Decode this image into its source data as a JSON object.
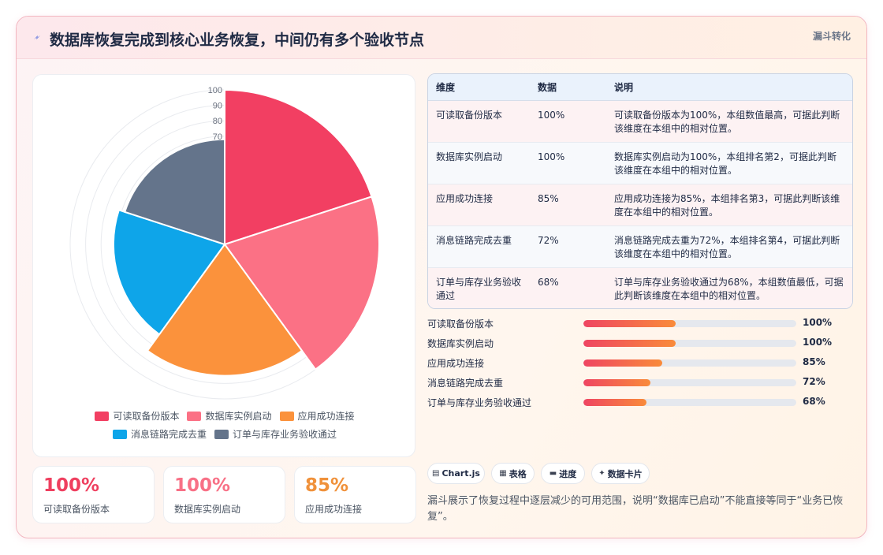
{
  "header": {
    "title": "数据库恢复完成到核心业务恢复，中间仍有多个验收节点",
    "badge": "漏斗转化"
  },
  "chart_data": {
    "type": "polar-area",
    "categories": [
      "可读取备份版本",
      "数据库实例启动",
      "应用成功连接",
      "消息链路完成去重",
      "订单与库存业务验收通过"
    ],
    "values": [
      100,
      100,
      85,
      72,
      68
    ],
    "colors": [
      "#f23f62",
      "#fb7185",
      "#fb923c",
      "#0ea5e9",
      "#64748b"
    ],
    "r_ticks": [
      "100",
      "90",
      "80",
      "70"
    ],
    "rlim": [
      0,
      100
    ],
    "legend_position": "bottom"
  },
  "table": {
    "headers": [
      "维度",
      "数据",
      "说明"
    ],
    "rows": [
      {
        "dimension": "可读取备份版本",
        "value": "100%",
        "desc": "可读取备份版本为100%，本组数值最高，可据此判断该维度在本组中的相对位置。"
      },
      {
        "dimension": "数据库实例启动",
        "value": "100%",
        "desc": "数据库实例启动为100%，本组排名第2，可据此判断该维度在本组中的相对位置。"
      },
      {
        "dimension": "应用成功连接",
        "value": "85%",
        "desc": "应用成功连接为85%，本组排名第3，可据此判断该维度在本组中的相对位置。"
      },
      {
        "dimension": "消息链路完成去重",
        "value": "72%",
        "desc": "消息链路完成去重为72%，本组排名第4，可据此判断该维度在本组中的相对位置。"
      },
      {
        "dimension": "订单与库存业务验收通过",
        "value": "68%",
        "desc": "订单与库存业务验收通过为68%，本组数值最低，可据此判断该维度在本组中的相对位置。"
      }
    ]
  },
  "progress": [
    {
      "label": "可读取备份版本",
      "value": "100%",
      "fraction": 0.435
    },
    {
      "label": "数据库实例启动",
      "value": "100%",
      "fraction": 0.435
    },
    {
      "label": "应用成功连接",
      "value": "85%",
      "fraction": 0.37
    },
    {
      "label": "消息链路完成去重",
      "value": "72%",
      "fraction": 0.313
    },
    {
      "label": "订单与库存业务验收通过",
      "value": "68%",
      "fraction": 0.296
    }
  ],
  "stats": [
    {
      "value": "100%",
      "label": "可读取备份版本",
      "color": "#ef3f5f"
    },
    {
      "value": "100%",
      "label": "数据库实例启动",
      "color": "#f87086"
    },
    {
      "value": "85%",
      "label": "应用成功连接",
      "color": "#f0913a"
    }
  ],
  "tags": [
    {
      "icon": "chart-icon",
      "glyph": "▤",
      "label": "Chart.js"
    },
    {
      "icon": "table-icon",
      "glyph": "▦",
      "label": "表格"
    },
    {
      "icon": "progress-icon",
      "glyph": "▬",
      "label": "进度"
    },
    {
      "icon": "sparkle-icon",
      "glyph": "✦",
      "label": "数据卡片"
    }
  ],
  "note": "漏斗展示了恢复过程中逐层减少的可用范围，说明“数据库已启动”不能直接等同于“业务已恢复”。"
}
